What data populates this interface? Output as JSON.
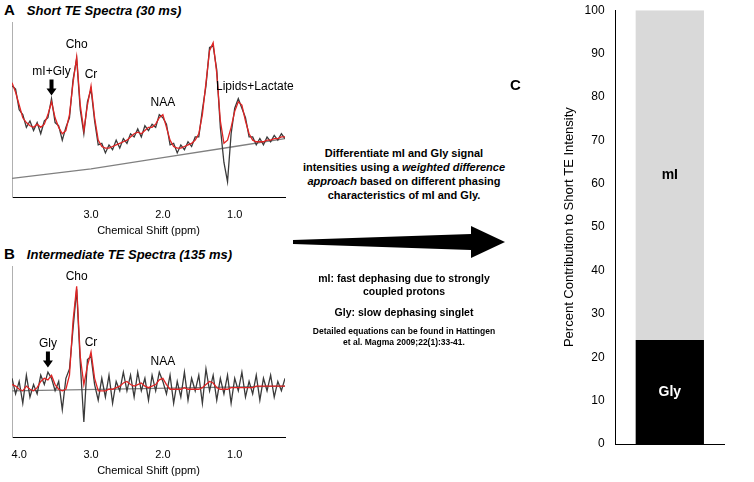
{
  "chart_data": [
    {
      "panel": "A",
      "type": "line",
      "title": "Short TE Spectra (30 ms)",
      "xlabel": "Chemical Shift (ppm)",
      "x": [
        4.1,
        4.05,
        4.0,
        3.95,
        3.9,
        3.85,
        3.8,
        3.75,
        3.7,
        3.65,
        3.6,
        3.55,
        3.5,
        3.45,
        3.4,
        3.35,
        3.3,
        3.25,
        3.2,
        3.15,
        3.1,
        3.05,
        3.0,
        2.95,
        2.9,
        2.85,
        2.8,
        2.75,
        2.7,
        2.65,
        2.6,
        2.55,
        2.5,
        2.45,
        2.4,
        2.35,
        2.3,
        2.25,
        2.2,
        2.15,
        2.1,
        2.05,
        2.0,
        1.95,
        1.9,
        1.85,
        1.8,
        1.75,
        1.7,
        1.65,
        1.6,
        1.55,
        1.5,
        1.45,
        1.4,
        1.35,
        1.3,
        1.25,
        1.2,
        1.15,
        1.1,
        1.05,
        1.0,
        0.95,
        0.9,
        0.85,
        0.8,
        0.75,
        0.7,
        0.65,
        0.6,
        0.55,
        0.5,
        0.45,
        0.4,
        0.35,
        0.3
      ],
      "xlim": [
        4.1,
        0.3
      ],
      "xticks": [
        {
          "value": 3,
          "label": "3.0"
        },
        {
          "value": 2,
          "label": "2.0"
        },
        {
          "value": 1,
          "label": "1.0"
        }
      ],
      "ylim": [
        0,
        110
      ],
      "tick_labels": "x",
      "grid": false,
      "series": [
        {
          "color": "#808080",
          "x": [
            4.1,
            3.0,
            2.0,
            1.0,
            0.3
          ],
          "values": [
            12,
            18,
            25,
            32,
            37
          ]
        },
        {
          "color": "#3a3a3a",
          "values": [
            70,
            68,
            55,
            52,
            44,
            48,
            42,
            47,
            40,
            48,
            50,
            62,
            47,
            45,
            36,
            44,
            50,
            74,
            87,
            55,
            40,
            60,
            68,
            48,
            33,
            34,
            28,
            33,
            30,
            36,
            31,
            37,
            34,
            40,
            38,
            43,
            38,
            45,
            42,
            46,
            44,
            52,
            50,
            46,
            33,
            34,
            28,
            33,
            30,
            35,
            32,
            38,
            38,
            55,
            70,
            94,
            95,
            80,
            44,
            22,
            10,
            40,
            56,
            62,
            56,
            50,
            38,
            38,
            33,
            37,
            33,
            38,
            35,
            39,
            36,
            40,
            37
          ]
        },
        {
          "color": "#e02424",
          "values": [
            72,
            66,
            58,
            50,
            47,
            45,
            44,
            46,
            44,
            46,
            52,
            60,
            50,
            44,
            40,
            42,
            52,
            72,
            88,
            58,
            42,
            58,
            70,
            50,
            36,
            32,
            31,
            31,
            32,
            33,
            34,
            35,
            36,
            38,
            40,
            41,
            40,
            42,
            44,
            44,
            46,
            50,
            52,
            44,
            36,
            32,
            31,
            31,
            32,
            33,
            34,
            36,
            40,
            52,
            72,
            92,
            97,
            78,
            48,
            34,
            36,
            44,
            54,
            60,
            58,
            48,
            40,
            36,
            35,
            35,
            35,
            36,
            36,
            37,
            37,
            38,
            38
          ]
        }
      ],
      "annotations": [
        {
          "text": "mI+Gly",
          "x": 3.55,
          "y": 64,
          "marker": "arrow"
        },
        {
          "text": "Cho",
          "x": 3.2,
          "y": 92
        },
        {
          "text": "Cr",
          "x": 3.0,
          "y": 73
        },
        {
          "text": "NAA",
          "x": 2.0,
          "y": 56
        },
        {
          "text": "Lipids+Lactate",
          "x": 0.72,
          "y": 66
        }
      ]
    },
    {
      "panel": "B",
      "type": "line",
      "title": "Intermediate TE Spectra (135 ms)",
      "xlabel": "Chemical Shift (ppm)",
      "x": [
        4.1,
        4.05,
        4.0,
        3.95,
        3.9,
        3.85,
        3.8,
        3.75,
        3.7,
        3.65,
        3.6,
        3.55,
        3.5,
        3.45,
        3.4,
        3.35,
        3.3,
        3.25,
        3.2,
        3.15,
        3.1,
        3.05,
        3.0,
        2.95,
        2.9,
        2.85,
        2.8,
        2.75,
        2.7,
        2.65,
        2.6,
        2.55,
        2.5,
        2.45,
        2.4,
        2.35,
        2.3,
        2.25,
        2.2,
        2.15,
        2.1,
        2.05,
        2.0,
        1.95,
        1.9,
        1.85,
        1.8,
        1.75,
        1.7,
        1.65,
        1.6,
        1.55,
        1.5,
        1.45,
        1.4,
        1.35,
        1.3,
        1.25,
        1.2,
        1.15,
        1.1,
        1.05,
        1.0,
        0.95,
        0.9,
        0.85,
        0.8,
        0.75,
        0.7,
        0.65,
        0.6,
        0.55,
        0.5,
        0.45,
        0.4,
        0.35,
        0.3
      ],
      "xlim": [
        4.1,
        0.3
      ],
      "xticks": [
        {
          "value": 4,
          "label": "4.0"
        },
        {
          "value": 3,
          "label": "3.0"
        },
        {
          "value": 2,
          "label": "2.0"
        },
        {
          "value": 1,
          "label": "1.0"
        }
      ],
      "ylim": [
        0,
        110
      ],
      "tick_labels": "x",
      "grid": false,
      "series": [
        {
          "color": "#808080",
          "x": [
            4.1,
            0.3
          ],
          "values": [
            30,
            33
          ]
        },
        {
          "color": "#3a3a3a",
          "values": [
            38,
            28,
            36,
            22,
            40,
            26,
            34,
            28,
            40,
            34,
            42,
            38,
            30,
            36,
            18,
            38,
            44,
            70,
            95,
            48,
            10,
            50,
            52,
            34,
            24,
            38,
            26,
            40,
            22,
            36,
            30,
            42,
            30,
            40,
            26,
            42,
            30,
            38,
            24,
            40,
            30,
            42,
            36,
            28,
            40,
            22,
            36,
            26,
            42,
            24,
            38,
            30,
            40,
            22,
            44,
            30,
            40,
            24,
            38,
            28,
            40,
            22,
            38,
            30,
            42,
            26,
            36,
            28,
            40,
            24,
            38,
            30,
            40,
            26,
            36,
            30,
            38
          ]
        },
        {
          "color": "#e02424",
          "values": [
            34,
            33,
            31,
            30,
            33,
            31,
            30,
            32,
            36,
            38,
            37,
            40,
            34,
            31,
            30,
            31,
            40,
            75,
            97,
            52,
            34,
            46,
            55,
            38,
            30,
            30,
            30,
            31,
            31,
            32,
            33,
            35,
            36,
            34,
            33,
            34,
            35,
            33,
            32,
            33,
            34,
            37,
            38,
            34,
            31,
            31,
            31,
            31,
            32,
            31,
            31,
            31,
            31,
            32,
            34,
            36,
            35,
            32,
            31,
            31,
            31,
            32,
            32,
            32,
            32,
            32,
            32,
            32,
            33,
            33,
            33,
            33,
            33,
            33,
            33,
            33,
            33
          ]
        }
      ],
      "annotations": [
        {
          "text": "Gly",
          "x": 3.6,
          "y": 45,
          "marker": "arrow"
        },
        {
          "text": "Cho",
          "x": 3.2,
          "y": 99
        },
        {
          "text": "Cr",
          "x": 3.0,
          "y": 57
        },
        {
          "text": "NAA",
          "x": 2.0,
          "y": 45
        }
      ]
    },
    {
      "panel": "C",
      "type": "bar",
      "stacked": true,
      "categories": [
        null
      ],
      "ylabel": "Percent Contribution to Short TE Intensity",
      "ylim": [
        0,
        100
      ],
      "yticks": [
        0,
        10,
        20,
        30,
        40,
        50,
        60,
        70,
        80,
        90,
        100
      ],
      "tick_labels": "y",
      "grid": false,
      "series": [
        {
          "name": "Gly",
          "color": "#000000",
          "values": [
            24
          ]
        },
        {
          "name": "mI",
          "color": "#d9d9d9",
          "values": [
            76
          ]
        }
      ]
    }
  ],
  "method": {
    "text": [
      {
        "text": "Differentiate mI and Gly signal intensities using a "
      },
      {
        "text": "weighted difference approach",
        "style": "italic"
      },
      {
        "text": " based on different phasing characteristics of mI and Gly."
      }
    ],
    "details": [
      "mI: fast dephasing due to strongly coupled protons",
      "Gly: slow dephasing singlet"
    ],
    "reference": "Detailed equations can be found in Hattingen et al. Magma 2009;22(1):33-41."
  }
}
